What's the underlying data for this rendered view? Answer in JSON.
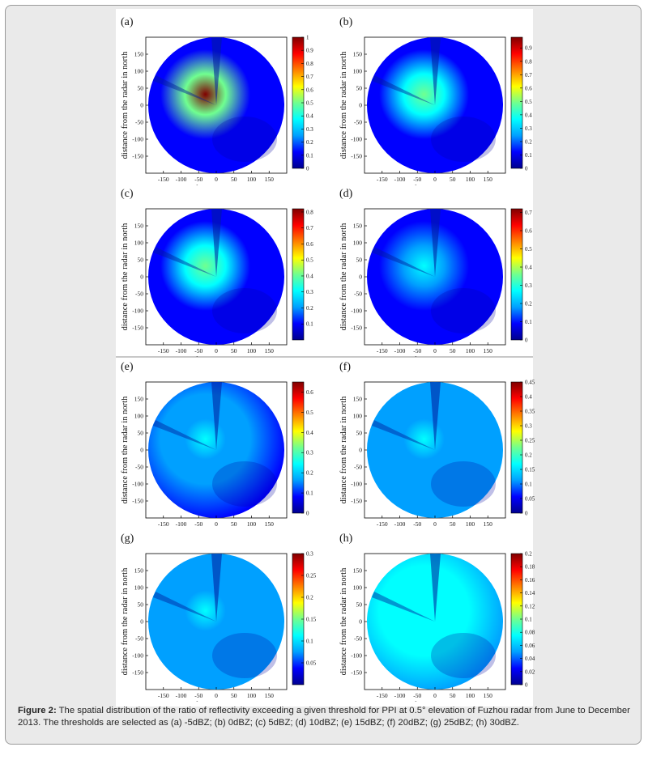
{
  "figure": {
    "caption_label": "Figure 2:",
    "caption_text": "The spatial distribution of the ratio of reflectivity exceeding a given threshold for PPI at 0.5° elevation of Fuzhou radar from June to December 2013. The thresholds are selected as (a) -5dBZ; (b) 0dBZ; (c) 5dBZ; (d) 10dBZ; (e) 15dBZ; (f) 20dBZ; (g) 25dBZ; (h) 30dBZ."
  },
  "colors": {
    "jet": [
      "#00008f",
      "#0000ff",
      "#00a0ff",
      "#00ffff",
      "#70ff90",
      "#ffff00",
      "#ff8000",
      "#ff0000",
      "#800000"
    ],
    "frame_bg": "#eaeaea"
  },
  "chart_data": [
    {
      "panel": "(a)",
      "type": "heatmap",
      "threshold": "-5dBZ",
      "xlabel": "distance from the radar in east",
      "ylabel": "distance from the radar in north",
      "xticks": [
        "-150",
        "-100",
        "-50",
        "0",
        "50",
        "100",
        "150"
      ],
      "yticks": [
        "150",
        "100",
        "50",
        "0",
        "-50",
        "-100",
        "-150"
      ],
      "xlim": [
        -200,
        200
      ],
      "ylim": [
        -200,
        200
      ],
      "colorbar_ticks": [
        "1",
        "0.9",
        "0.8",
        "0.7",
        "0.6",
        "0.5",
        "0.4",
        "0.3",
        "0.2",
        "0.1",
        "0"
      ],
      "colorbar_range": [
        0,
        1
      ],
      "center_value": 0.95,
      "background_value": 0.1
    },
    {
      "panel": "(b)",
      "type": "heatmap",
      "threshold": "0dBZ",
      "xlabel": "distance from the radar in east",
      "ylabel": "distance from the radar in north",
      "xticks": [
        "-150",
        "-100",
        "-50",
        "0",
        "50",
        "100",
        "150"
      ],
      "yticks": [
        "150",
        "100",
        "50",
        "0",
        "-50",
        "-100",
        "-150"
      ],
      "xlim": [
        -200,
        200
      ],
      "ylim": [
        -200,
        200
      ],
      "colorbar_ticks": [
        "0.9",
        "0.8",
        "0.7",
        "0.6",
        "0.5",
        "0.4",
        "0.3",
        "0.2",
        "0.1",
        "0"
      ],
      "colorbar_range": [
        0,
        0.98
      ],
      "center_value": 0.55,
      "background_value": 0.08
    },
    {
      "panel": "(c)",
      "type": "heatmap",
      "threshold": "5dBZ",
      "xlabel": "distance from the radar in east",
      "ylabel": "distance from the radar in north",
      "xticks": [
        "-150",
        "-100",
        "-50",
        "0",
        "50",
        "100",
        "150"
      ],
      "yticks": [
        "150",
        "100",
        "50",
        "0",
        "-50",
        "-100",
        "-150"
      ],
      "xlim": [
        -200,
        200
      ],
      "ylim": [
        -200,
        200
      ],
      "colorbar_ticks": [
        "0.8",
        "0.7",
        "0.6",
        "0.5",
        "0.4",
        "0.3",
        "0.2",
        "0.1"
      ],
      "colorbar_range": [
        0,
        0.82
      ],
      "center_value": 0.4,
      "background_value": 0.12
    },
    {
      "panel": "(d)",
      "type": "heatmap",
      "threshold": "10dBZ",
      "xlabel": "distance from the radar in east",
      "ylabel": "distance from the radar in north",
      "xticks": [
        "-150",
        "-100",
        "-50",
        "0",
        "50",
        "100",
        "150"
      ],
      "yticks": [
        "150",
        "100",
        "50",
        "0",
        "-50",
        "-100",
        "-150"
      ],
      "xlim": [
        -200,
        200
      ],
      "ylim": [
        -200,
        200
      ],
      "colorbar_ticks": [
        "0.7",
        "0.6",
        "0.5",
        "0.4",
        "0.3",
        "0.2",
        "0.1",
        "0"
      ],
      "colorbar_range": [
        0,
        0.72
      ],
      "center_value": 0.3,
      "background_value": 0.12
    },
    {
      "panel": "(e)",
      "type": "heatmap",
      "threshold": "15dBZ",
      "xlabel": "",
      "ylabel": "distance from the radar in north",
      "xticks": [
        "-150",
        "-100",
        "-50",
        "0",
        "50",
        "100",
        "150"
      ],
      "yticks": [
        "150",
        "100",
        "50",
        "0",
        "-50",
        "-100",
        "-150"
      ],
      "xlim": [
        -200,
        200
      ],
      "ylim": [
        -200,
        200
      ],
      "colorbar_ticks": [
        "0.6",
        "0.5",
        "0.4",
        "0.3",
        "0.2",
        "0.1",
        "0"
      ],
      "colorbar_range": [
        0,
        0.65
      ],
      "center_value": 0.22,
      "background_value": 0.12
    },
    {
      "panel": "(f)",
      "type": "heatmap",
      "threshold": "20dBZ",
      "xlabel": "",
      "ylabel": "distance from the radar in north",
      "xticks": [
        "-150",
        "-100",
        "-50",
        "0",
        "50",
        "100",
        "150"
      ],
      "yticks": [
        "150",
        "100",
        "50",
        "0",
        "-50",
        "-100",
        "-150"
      ],
      "xlim": [
        -200,
        200
      ],
      "ylim": [
        -200,
        200
      ],
      "colorbar_ticks": [
        "0.45",
        "0.4",
        "0.35",
        "0.3",
        "0.25",
        "0.2",
        "0.15",
        "0.1",
        "0.05",
        "0"
      ],
      "colorbar_range": [
        0,
        0.45
      ],
      "center_value": 0.15,
      "background_value": 0.1
    },
    {
      "panel": "(g)",
      "type": "heatmap",
      "threshold": "25dBZ",
      "xlabel": "distance from the radar in east",
      "ylabel": "distance from the radar in north",
      "xticks": [
        "-150",
        "-100",
        "-50",
        "0",
        "50",
        "100",
        "150"
      ],
      "yticks": [
        "150",
        "100",
        "50",
        "0",
        "-50",
        "-100",
        "-150"
      ],
      "xlim": [
        -200,
        200
      ],
      "ylim": [
        -200,
        200
      ],
      "colorbar_ticks": [
        "0.3",
        "0.25",
        "0.2",
        "0.15",
        "0.1",
        "0.05"
      ],
      "colorbar_range": [
        0,
        0.3
      ],
      "center_value": 0.1,
      "background_value": 0.08
    },
    {
      "panel": "(h)",
      "type": "heatmap",
      "threshold": "30dBZ",
      "xlabel": "distance from the radar in east",
      "ylabel": "distance from the radar in north",
      "xticks": [
        "-150",
        "-100",
        "-50",
        "0",
        "50",
        "100",
        "150"
      ],
      "yticks": [
        "150",
        "100",
        "50",
        "0",
        "-50",
        "-100",
        "-150"
      ],
      "xlim": [
        -200,
        200
      ],
      "ylim": [
        -200,
        200
      ],
      "colorbar_ticks": [
        "0.2",
        "0.18",
        "0.16",
        "0.14",
        "0.12",
        "0.1",
        "0.08",
        "0.06",
        "0.04",
        "0.02",
        "0"
      ],
      "colorbar_range": [
        0,
        0.2
      ],
      "center_value": 0.07,
      "background_value": 0.06
    }
  ]
}
